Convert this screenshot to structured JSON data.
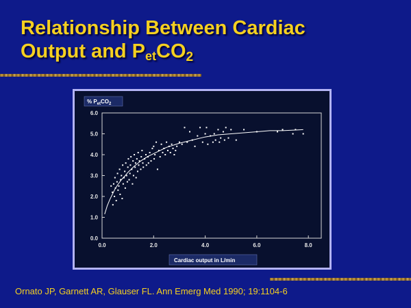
{
  "slide": {
    "title_line1": "Relationship Between Cardiac",
    "title_line2_pre": "Output and P",
    "title_sub": "et",
    "title_post": "CO",
    "title_sub2": "2",
    "citation": "Ornato JP, Garnett AR, Glauser FL. Ann Emerg Med 1990; 19:1104-6"
  },
  "colors": {
    "background": "#0e1a8a",
    "title": "#f5d020",
    "frame_border": "#b3b3f5",
    "plot_background": "#08102e",
    "points": "#ffffff"
  },
  "chart_data": {
    "type": "scatter",
    "ylabel_pre": "% P",
    "ylabel_sub": "et",
    "ylabel_post": "CO",
    "ylabel_sub2": "2",
    "xlabel": "Cardiac output in L/min",
    "xlim": [
      0,
      8.5
    ],
    "ylim": [
      0,
      6.0
    ],
    "x_ticks": [
      "0.0",
      "2.0",
      "4.0",
      "6.0",
      "8.0"
    ],
    "y_ticks": [
      "0.0",
      "1.0",
      "2.0",
      "3.0",
      "4.0",
      "5.0",
      "6.0"
    ],
    "grid": false,
    "series": [
      {
        "points": [
          [
            0.35,
            2.5
          ],
          [
            0.4,
            2.2
          ],
          [
            0.42,
            1.6
          ],
          [
            0.45,
            2.6
          ],
          [
            0.48,
            2.0
          ],
          [
            0.5,
            2.9
          ],
          [
            0.52,
            2.4
          ],
          [
            0.55,
            1.8
          ],
          [
            0.58,
            2.7
          ],
          [
            0.6,
            3.1
          ],
          [
            0.62,
            2.3
          ],
          [
            0.65,
            2.5
          ],
          [
            0.68,
            3.3
          ],
          [
            0.7,
            2.1
          ],
          [
            0.72,
            2.8
          ],
          [
            0.75,
            3.0
          ],
          [
            0.78,
            1.9
          ],
          [
            0.8,
            3.5
          ],
          [
            0.82,
            2.6
          ],
          [
            0.85,
            2.9
          ],
          [
            0.88,
            3.2
          ],
          [
            0.9,
            2.4
          ],
          [
            0.92,
            3.6
          ],
          [
            0.95,
            3.0
          ],
          [
            0.98,
            2.7
          ],
          [
            1.0,
            3.4
          ],
          [
            1.02,
            3.8
          ],
          [
            1.05,
            2.8
          ],
          [
            1.08,
            3.1
          ],
          [
            1.1,
            3.5
          ],
          [
            1.12,
            3.9
          ],
          [
            1.15,
            3.3
          ],
          [
            1.18,
            2.6
          ],
          [
            1.2,
            3.7
          ],
          [
            1.22,
            3.0
          ],
          [
            1.25,
            4.0
          ],
          [
            1.28,
            3.4
          ],
          [
            1.3,
            3.6
          ],
          [
            1.32,
            2.9
          ],
          [
            1.35,
            3.8
          ],
          [
            1.38,
            3.2
          ],
          [
            1.4,
            4.1
          ],
          [
            1.42,
            3.5
          ],
          [
            1.45,
            3.7
          ],
          [
            1.5,
            3.3
          ],
          [
            1.52,
            3.9
          ],
          [
            1.55,
            4.2
          ],
          [
            1.58,
            3.6
          ],
          [
            1.6,
            3.4
          ],
          [
            1.65,
            3.8
          ],
          [
            1.7,
            4.0
          ],
          [
            1.72,
            3.5
          ],
          [
            1.78,
            3.9
          ],
          [
            1.8,
            3.6
          ],
          [
            1.85,
            4.1
          ],
          [
            1.9,
            3.7
          ],
          [
            1.95,
            4.3
          ],
          [
            2.0,
            4.4
          ],
          [
            2.02,
            3.8
          ],
          [
            2.05,
            4.0
          ],
          [
            2.1,
            4.6
          ],
          [
            2.15,
            3.3
          ],
          [
            2.2,
            4.2
          ],
          [
            2.25,
            3.9
          ],
          [
            2.3,
            4.5
          ],
          [
            2.35,
            4.1
          ],
          [
            2.4,
            4.3
          ],
          [
            2.45,
            4.0
          ],
          [
            2.5,
            4.6
          ],
          [
            2.55,
            4.2
          ],
          [
            2.6,
            4.4
          ],
          [
            2.65,
            4.1
          ],
          [
            2.7,
            4.5
          ],
          [
            2.75,
            4.3
          ],
          [
            2.8,
            4.0
          ],
          [
            2.85,
            4.2
          ],
          [
            2.9,
            4.4
          ],
          [
            3.0,
            4.6
          ],
          [
            3.1,
            4.5
          ],
          [
            3.2,
            5.3
          ],
          [
            3.3,
            4.6
          ],
          [
            3.4,
            5.1
          ],
          [
            3.5,
            4.7
          ],
          [
            3.6,
            4.4
          ],
          [
            3.7,
            4.9
          ],
          [
            3.8,
            5.3
          ],
          [
            3.9,
            4.6
          ],
          [
            4.0,
            5.0
          ],
          [
            4.05,
            5.3
          ],
          [
            4.1,
            4.5
          ],
          [
            4.2,
            4.9
          ],
          [
            4.3,
            4.6
          ],
          [
            4.35,
            5.0
          ],
          [
            4.4,
            4.7
          ],
          [
            4.5,
            5.2
          ],
          [
            4.55,
            4.6
          ],
          [
            4.6,
            4.8
          ],
          [
            4.7,
            5.1
          ],
          [
            4.75,
            4.7
          ],
          [
            4.8,
            5.3
          ],
          [
            4.9,
            4.8
          ],
          [
            5.0,
            5.2
          ],
          [
            5.2,
            4.7
          ],
          [
            5.5,
            5.2
          ],
          [
            6.0,
            5.1
          ],
          [
            6.8,
            5.1
          ],
          [
            7.0,
            5.2
          ],
          [
            7.4,
            5.0
          ],
          [
            7.5,
            5.2
          ],
          [
            7.8,
            5.0
          ]
        ]
      }
    ],
    "curve": [
      [
        0.1,
        1.15
      ],
      [
        0.2,
        1.55
      ],
      [
        0.3,
        1.85
      ],
      [
        0.4,
        2.1
      ],
      [
        0.5,
        2.35
      ],
      [
        0.6,
        2.55
      ],
      [
        0.75,
        2.8
      ],
      [
        0.9,
        3.0
      ],
      [
        1.0,
        3.15
      ],
      [
        1.25,
        3.45
      ],
      [
        1.5,
        3.7
      ],
      [
        1.75,
        3.9
      ],
      [
        2.0,
        4.05
      ],
      [
        2.5,
        4.35
      ],
      [
        3.0,
        4.55
      ],
      [
        3.5,
        4.7
      ],
      [
        4.0,
        4.85
      ],
      [
        4.5,
        4.95
      ],
      [
        5.0,
        5.0
      ],
      [
        5.5,
        5.05
      ],
      [
        6.0,
        5.1
      ],
      [
        6.5,
        5.15
      ],
      [
        7.0,
        5.15
      ],
      [
        7.5,
        5.18
      ],
      [
        7.8,
        5.2
      ]
    ]
  }
}
